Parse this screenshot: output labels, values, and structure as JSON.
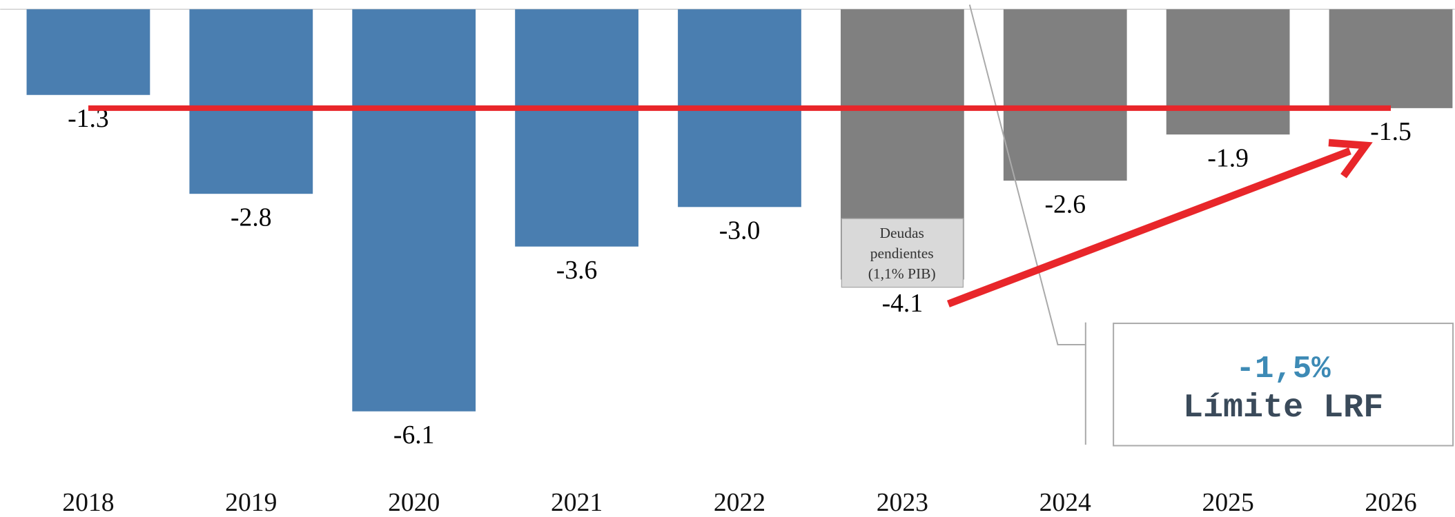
{
  "chart_data": {
    "type": "bar",
    "categories": [
      "2018",
      "2019",
      "2020",
      "2021",
      "2022",
      "2023",
      "2024",
      "2025",
      "2026"
    ],
    "values": [
      -1.3,
      -2.8,
      -6.1,
      -3.6,
      -3.0,
      -4.1,
      -2.6,
      -1.9,
      -1.5
    ],
    "value_labels": [
      "-1.3",
      "-2.8",
      "-6.1",
      "-3.6",
      "-3.0",
      "-4.1",
      "-2.6",
      "-1.9",
      "-1.5"
    ],
    "colors": [
      "#4a7eb0",
      "#4a7eb0",
      "#4a7eb0",
      "#4a7eb0",
      "#4a7eb0",
      "#808080",
      "#808080",
      "#808080",
      "#808080"
    ],
    "ylim": [
      -7,
      0
    ],
    "reference_line": {
      "value": -1.5,
      "color": "#e8262a"
    },
    "note_lines": [
      "Deudas",
      "pendientes",
      "(1,1% PIB)"
    ],
    "limit_box": {
      "value_text": "-1,5%",
      "label": "Límite LRF"
    }
  }
}
